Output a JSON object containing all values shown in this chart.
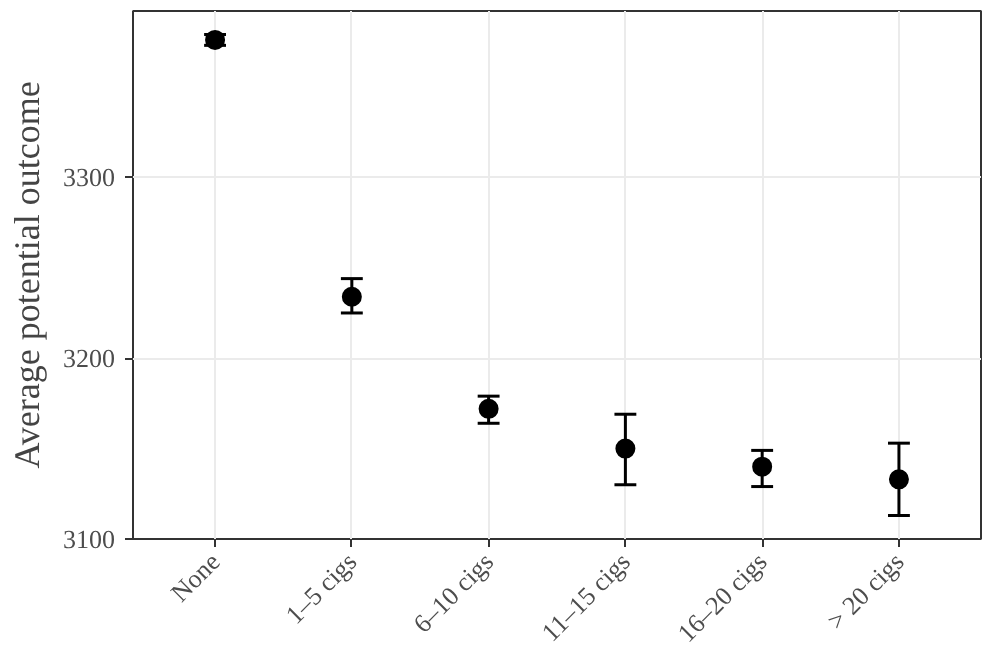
{
  "chart_data": {
    "type": "scatter",
    "ylabel": "Average potential outcome",
    "categories": [
      "None",
      "1–5 cigs",
      "6–10 cigs",
      "11–15 cigs",
      "16–20 cigs",
      "> 20 cigs"
    ],
    "values": [
      3376,
      3234,
      3172,
      3150,
      3140,
      3133
    ],
    "errors": [
      [
        3373,
        3379
      ],
      [
        3225,
        3244
      ],
      [
        3164,
        3179
      ],
      [
        3130,
        3169
      ],
      [
        3129,
        3149
      ],
      [
        3113,
        3153
      ]
    ],
    "color": "#000000",
    "marker": "circle",
    "ylim": [
      3100,
      3392
    ],
    "yticks": [
      3100,
      3200,
      3300
    ],
    "grid": true
  }
}
